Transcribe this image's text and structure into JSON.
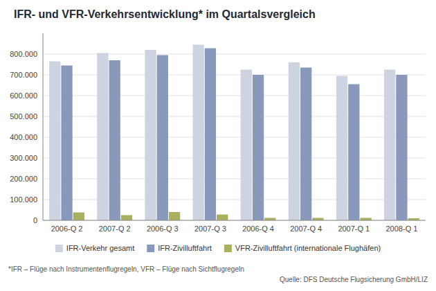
{
  "chart_data": {
    "type": "bar",
    "title": "IFR- und VFR-Verkehrsentwicklung* im Quartalsvergleich",
    "categories": [
      "2006-Q 2",
      "2007-Q 2",
      "2006-Q 3",
      "2007-Q 3",
      "2006-Q 4",
      "2007-Q 4",
      "2007-Q 1",
      "2008-Q 1"
    ],
    "series": [
      {
        "name": "IFR-Verkehr gesamt",
        "color": "#cdd3e0",
        "values": [
          765000,
          805000,
          820000,
          845000,
          725000,
          760000,
          695000,
          725000
        ]
      },
      {
        "name": "IFR-Zivilluftfahrt",
        "color": "#8899bb",
        "values": [
          745000,
          770000,
          795000,
          828000,
          700000,
          735000,
          655000,
          700000
        ]
      },
      {
        "name": "VFR-Zivilluftfahrt (internationale Flughäfen)",
        "color": "#aab060",
        "values": [
          38000,
          25000,
          40000,
          28000,
          12000,
          12000,
          12000,
          10000
        ]
      }
    ],
    "ylim": [
      0,
      900000
    ],
    "yticks": [
      0,
      {
        "value": 100000,
        "label": "100.000"
      },
      {
        "value": 200000,
        "label": "200.000"
      },
      {
        "value": 300000,
        "label": "300.000"
      },
      {
        "value": 400000,
        "label": "400.000"
      },
      {
        "value": 500000,
        "label": "500.000"
      },
      {
        "value": 600000,
        "label": "600.000"
      },
      {
        "value": 700000,
        "label": "700.000"
      },
      {
        "value": 800000,
        "label": "800.000"
      }
    ],
    "grid": true,
    "legend": "bottom",
    "annotations": [
      "*IFR – Flüge nach Instrumentenflugregeln, VFR – Flüge nach Sichtflugregeln",
      "Quelle: DFS Deutsche Flugsicherung GmbH/LIZ"
    ]
  }
}
